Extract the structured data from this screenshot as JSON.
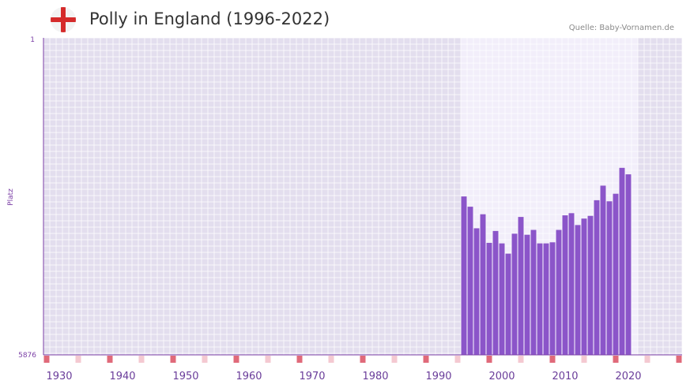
{
  "header": {
    "title": "Polly in England (1996-2022)",
    "source": "Quelle: Baby-Vornamen.de",
    "flag_icon": "england-flag-icon"
  },
  "colors": {
    "bar": "#8b55c9",
    "plot_bg": "#e3deee",
    "highlight_bg": "#f2eefa",
    "axis": "#7b3fa6",
    "marker_strong": "#e06a7a",
    "marker_light": "#f4c9d1"
  },
  "chart_data": {
    "type": "bar",
    "title": "Polly in England (1996-2022)",
    "xlabel": "",
    "ylabel": "Platz",
    "y_inverted": true,
    "ylim": [
      1,
      5876
    ],
    "y_ticks": [
      "1",
      "5876"
    ],
    "xlim": [
      1927.5,
      2028.5
    ],
    "x_ticks": [
      1930,
      1940,
      1950,
      1960,
      1970,
      1980,
      1990,
      2000,
      2010,
      2020
    ],
    "highlight_range": [
      1994,
      2021
    ],
    "x": [
      1994,
      1995,
      1996,
      1997,
      1998,
      1999,
      2000,
      2001,
      2002,
      2003,
      2004,
      2005,
      2006,
      2007,
      2008,
      2009,
      2010,
      2011,
      2012,
      2013,
      2014,
      2015,
      2016,
      2017,
      2018,
      2019,
      2020
    ],
    "values": [
      2940,
      3130,
      3530,
      3270,
      3800,
      3580,
      3810,
      4000,
      3630,
      3320,
      3650,
      3560,
      3810,
      3810,
      3790,
      3560,
      3290,
      3250,
      3470,
      3350,
      3300,
      3010,
      2740,
      3030,
      2890,
      2410,
      2530
    ],
    "axis_markers": {
      "strong": [
        1928,
        1938,
        1948,
        1958,
        1968,
        1978,
        1988,
        1998,
        2008,
        2018,
        2028
      ],
      "light": [
        1933,
        1943,
        1953,
        1963,
        1973,
        1983,
        1993,
        2003,
        2013,
        2023
      ]
    }
  }
}
